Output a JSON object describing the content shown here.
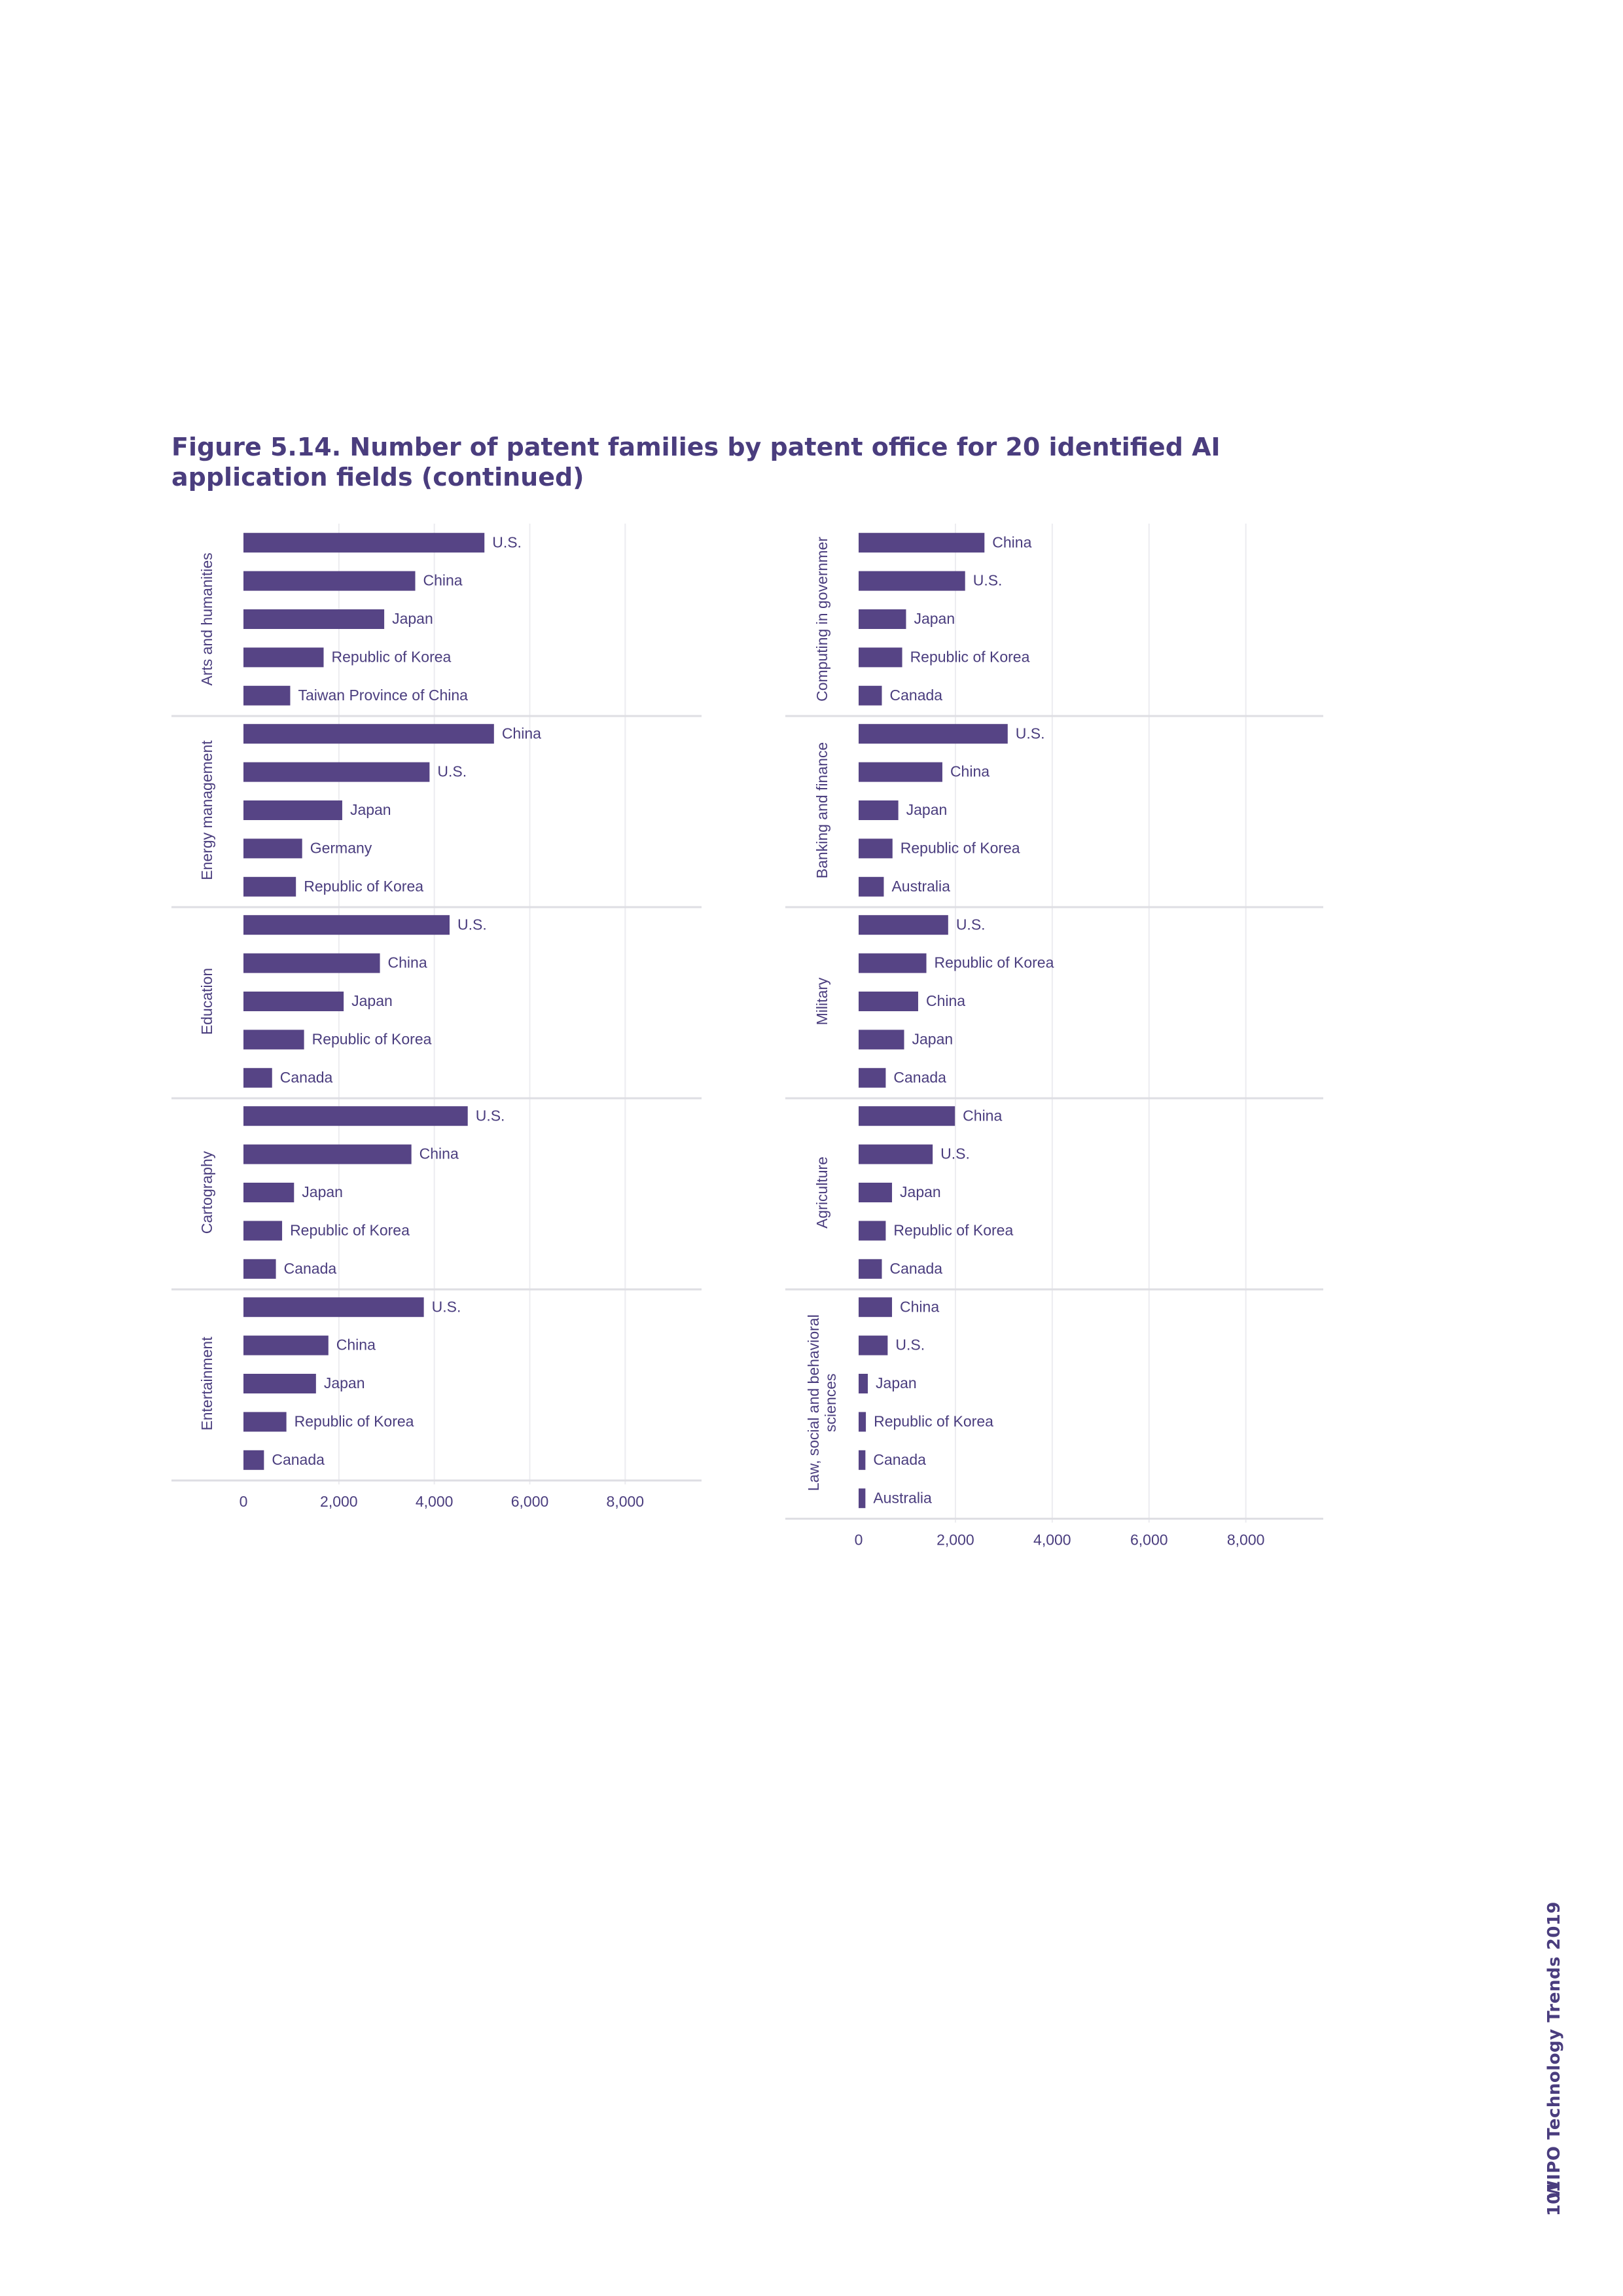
{
  "figure": {
    "title": "Figure 5.14. Number of patent families by patent office for 20 identified AI application fields (continued)"
  },
  "footer": {
    "page_number": "101",
    "publication": "WIPO Technology Trends 2019"
  },
  "colors": {
    "bar": "#564485",
    "text": "#4a3d7e"
  },
  "chart_data": [
    {
      "type": "bar",
      "orientation": "horizontal",
      "xlim": [
        0,
        9600
      ],
      "xticks": [
        0,
        2000,
        4000,
        6000,
        8000
      ],
      "xtick_labels": [
        "0",
        "2,000",
        "4,000",
        "6,000",
        "8,000"
      ],
      "grid": true,
      "facets": [
        {
          "label": [
            "Arts and humanities"
          ],
          "bars": [
            {
              "office": "U.S.",
              "value": 5050
            },
            {
              "office": "China",
              "value": 3600
            },
            {
              "office": "Japan",
              "value": 2950
            },
            {
              "office": "Republic of Korea",
              "value": 1680
            },
            {
              "office": "Taiwan Province of China",
              "value": 980
            }
          ]
        },
        {
          "label": [
            "Energy management"
          ],
          "bars": [
            {
              "office": "China",
              "value": 5250
            },
            {
              "office": "U.S.",
              "value": 3900
            },
            {
              "office": "Japan",
              "value": 2070
            },
            {
              "office": "Germany",
              "value": 1230
            },
            {
              "office": "Republic of Korea",
              "value": 1100
            }
          ]
        },
        {
          "label": [
            "Education"
          ],
          "bars": [
            {
              "office": "U.S.",
              "value": 4320
            },
            {
              "office": "China",
              "value": 2860
            },
            {
              "office": "Japan",
              "value": 2100
            },
            {
              "office": "Republic of Korea",
              "value": 1270
            },
            {
              "office": "Canada",
              "value": 600
            }
          ]
        },
        {
          "label": [
            "Cartography"
          ],
          "bars": [
            {
              "office": "U.S.",
              "value": 4700
            },
            {
              "office": "China",
              "value": 3520
            },
            {
              "office": "Japan",
              "value": 1060
            },
            {
              "office": "Republic of Korea",
              "value": 810
            },
            {
              "office": "Canada",
              "value": 680
            }
          ]
        },
        {
          "label": [
            "Entertainment"
          ],
          "bars": [
            {
              "office": "U.S.",
              "value": 3780
            },
            {
              "office": "China",
              "value": 1780
            },
            {
              "office": "Japan",
              "value": 1520
            },
            {
              "office": "Republic of Korea",
              "value": 900
            },
            {
              "office": "Canada",
              "value": 430
            }
          ]
        }
      ]
    },
    {
      "type": "bar",
      "orientation": "horizontal",
      "xlim": [
        0,
        9600
      ],
      "xticks": [
        0,
        2000,
        4000,
        6000,
        8000
      ],
      "xtick_labels": [
        "0",
        "2,000",
        "4,000",
        "6,000",
        "8,000"
      ],
      "grid": true,
      "facets": [
        {
          "label": [
            "Computing in governmer"
          ],
          "bars": [
            {
              "office": "China",
              "value": 2600
            },
            {
              "office": "U.S.",
              "value": 2200
            },
            {
              "office": "Japan",
              "value": 980
            },
            {
              "office": "Republic of Korea",
              "value": 900
            },
            {
              "office": "Canada",
              "value": 480
            }
          ]
        },
        {
          "label": [
            "Banking and finance"
          ],
          "bars": [
            {
              "office": "U.S.",
              "value": 3080
            },
            {
              "office": "China",
              "value": 1730
            },
            {
              "office": "Japan",
              "value": 820
            },
            {
              "office": "Republic of Korea",
              "value": 700
            },
            {
              "office": "Australia",
              "value": 520
            }
          ]
        },
        {
          "label": [
            "Military"
          ],
          "bars": [
            {
              "office": "U.S.",
              "value": 1850
            },
            {
              "office": "Republic of Korea",
              "value": 1400
            },
            {
              "office": "China",
              "value": 1230
            },
            {
              "office": "Japan",
              "value": 940
            },
            {
              "office": "Canada",
              "value": 560
            }
          ]
        },
        {
          "label": [
            "Agriculture"
          ],
          "bars": [
            {
              "office": "China",
              "value": 1990
            },
            {
              "office": "U.S.",
              "value": 1530
            },
            {
              "office": "Japan",
              "value": 690
            },
            {
              "office": "Republic of Korea",
              "value": 560
            },
            {
              "office": "Canada",
              "value": 480
            }
          ]
        },
        {
          "label": [
            "Law, social and behavioral",
            "sciences"
          ],
          "bars": [
            {
              "office": "China",
              "value": 690
            },
            {
              "office": "U.S.",
              "value": 600
            },
            {
              "office": "Japan",
              "value": 190
            },
            {
              "office": "Republic of Korea",
              "value": 150
            },
            {
              "office": "Canada",
              "value": 140
            },
            {
              "office": "Australia",
              "value": 140
            }
          ]
        }
      ]
    }
  ]
}
